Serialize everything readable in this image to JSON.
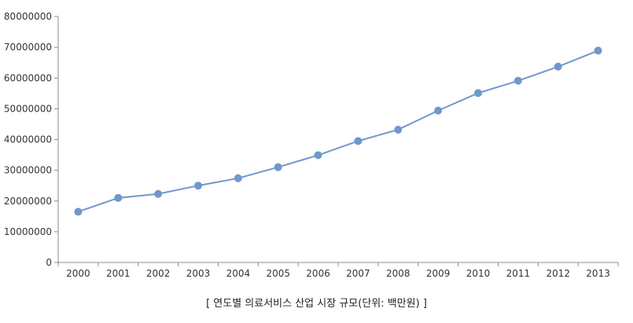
{
  "caption": "[ 연도별 의료서비스 산업 시장 규모(단위: 백만원) ]",
  "chart_data": {
    "type": "line",
    "categories": [
      "2000",
      "2001",
      "2002",
      "2003",
      "2004",
      "2005",
      "2006",
      "2007",
      "2008",
      "2009",
      "2010",
      "2011",
      "2012",
      "2013"
    ],
    "series": [
      {
        "values": [
          16500000,
          21000000,
          22300000,
          25000000,
          27400000,
          31000000,
          34900000,
          39500000,
          43200000,
          49400000,
          55100000,
          59100000,
          63700000,
          68900000
        ],
        "color": "#7098cc"
      }
    ],
    "ylim": [
      0,
      80000000
    ],
    "yticks": [
      0,
      10000000,
      20000000,
      30000000,
      40000000,
      50000000,
      60000000,
      70000000,
      80000000
    ],
    "grid": false,
    "legend": "none",
    "title": "",
    "xlabel": "",
    "ylabel": ""
  }
}
